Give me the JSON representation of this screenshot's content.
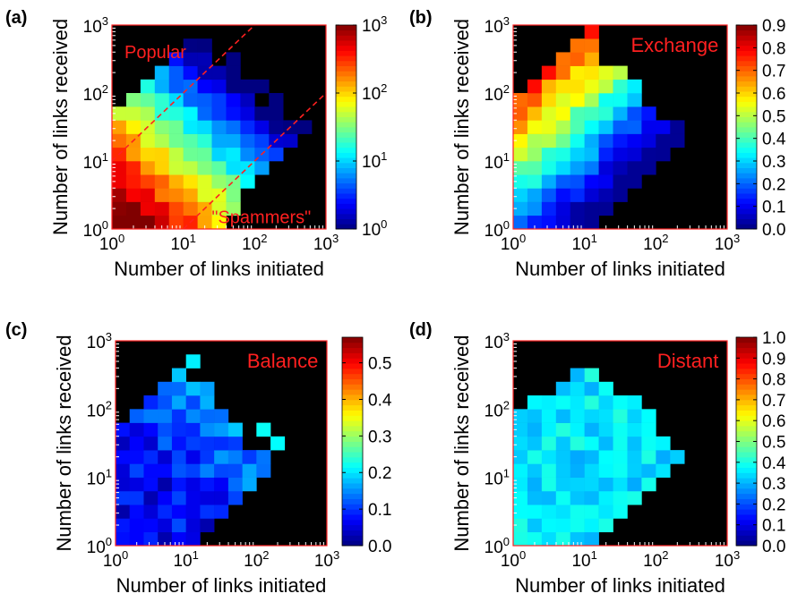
{
  "chart_data": [
    {
      "type": "heatmap",
      "panel_label": "(a)",
      "xlabel": "Number of links initiated",
      "ylabel": "Number of links received",
      "xscale": "log",
      "yscale": "log",
      "xlim": [
        1,
        1000
      ],
      "ylim": [
        1,
        1000
      ],
      "colorbar": {
        "scale": "log",
        "range": [
          1,
          1000
        ],
        "ticks": [
          1,
          10,
          100,
          1000
        ]
      },
      "annotations": [
        {
          "text": "Popular",
          "at": [
            1.5,
            400
          ]
        },
        {
          "text": "\"Spammers\"",
          "at": [
            25,
            1.5
          ]
        }
      ],
      "reference_lines": [
        {
          "style": "dashed",
          "color": "#ff2020",
          "y_equals_x_times": 10
        },
        {
          "style": "dashed",
          "color": "#ff2020",
          "y_equals_x_times": 0.1
        }
      ]
    },
    {
      "type": "heatmap",
      "panel_label": "(b)",
      "xlabel": "Number of links initiated",
      "ylabel": "Number of links received",
      "xscale": "log",
      "yscale": "log",
      "xlim": [
        1,
        1000
      ],
      "ylim": [
        1,
        1000
      ],
      "colorbar": {
        "scale": "linear",
        "range": [
          0,
          0.9
        ],
        "ticks": [
          0.0,
          0.1,
          0.2,
          0.3,
          0.4,
          0.5,
          0.6,
          0.7,
          0.8,
          0.9
        ]
      },
      "annotations": [
        {
          "text": "Exchange",
          "at": [
            120,
            500
          ]
        }
      ]
    },
    {
      "type": "heatmap",
      "panel_label": "(c)",
      "xlabel": "Number of links initiated",
      "ylabel": "Number of links received",
      "xscale": "log",
      "yscale": "log",
      "xlim": [
        1,
        1000
      ],
      "ylim": [
        1,
        1000
      ],
      "colorbar": {
        "scale": "linear",
        "range": [
          0,
          0.57
        ],
        "ticks": [
          0.0,
          0.1,
          0.2,
          0.3,
          0.4,
          0.5
        ]
      },
      "annotations": [
        {
          "text": "Balance",
          "at": [
            120,
            500
          ]
        }
      ]
    },
    {
      "type": "heatmap",
      "panel_label": "(d)",
      "xlabel": "Number of links initiated",
      "ylabel": "Number of links received",
      "xscale": "log",
      "yscale": "log",
      "xlim": [
        1,
        1000
      ],
      "ylim": [
        1,
        1000
      ],
      "colorbar": {
        "scale": "linear",
        "range": [
          0,
          1.0
        ],
        "ticks": [
          0.0,
          0.1,
          0.2,
          0.3,
          0.4,
          0.5,
          0.6,
          0.7,
          0.8,
          0.9,
          1.0
        ]
      },
      "annotations": [
        {
          "text": "Distant",
          "at": [
            120,
            500
          ]
        }
      ]
    }
  ],
  "colors": {
    "frame": "#ff2020",
    "background": "#000000",
    "annotation": "#ff2020"
  }
}
